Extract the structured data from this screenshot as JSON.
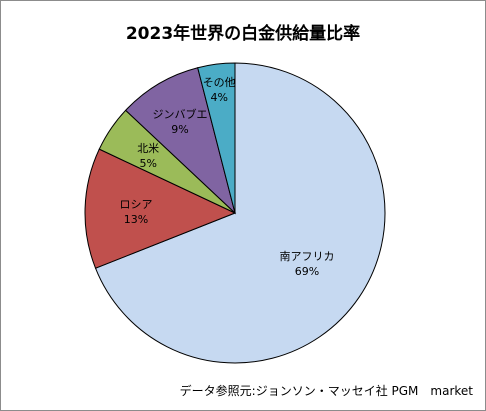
{
  "chart_data": {
    "type": "pie",
    "title": "2023年世界の白金供給量比率",
    "slices": [
      {
        "label": "南アフリカ",
        "value": 69,
        "value_label": "69%",
        "color": "#c6d9f1"
      },
      {
        "label": "ロシア",
        "value": 13,
        "value_label": "13%",
        "color": "#c0504d"
      },
      {
        "label": "北米",
        "value": 5,
        "value_label": "5%",
        "color": "#9bbb59"
      },
      {
        "label": "ジンバブエ",
        "value": 9,
        "value_label": "9%",
        "color": "#8064a2"
      },
      {
        "label": "その他",
        "value": 4,
        "value_label": "4%",
        "color": "#4bacc6"
      }
    ],
    "start": "12 o'clock",
    "direction": "clockwise",
    "legend": "none"
  },
  "source": "データ参照元:ジョンソン・マッセイ社 PGM　market"
}
